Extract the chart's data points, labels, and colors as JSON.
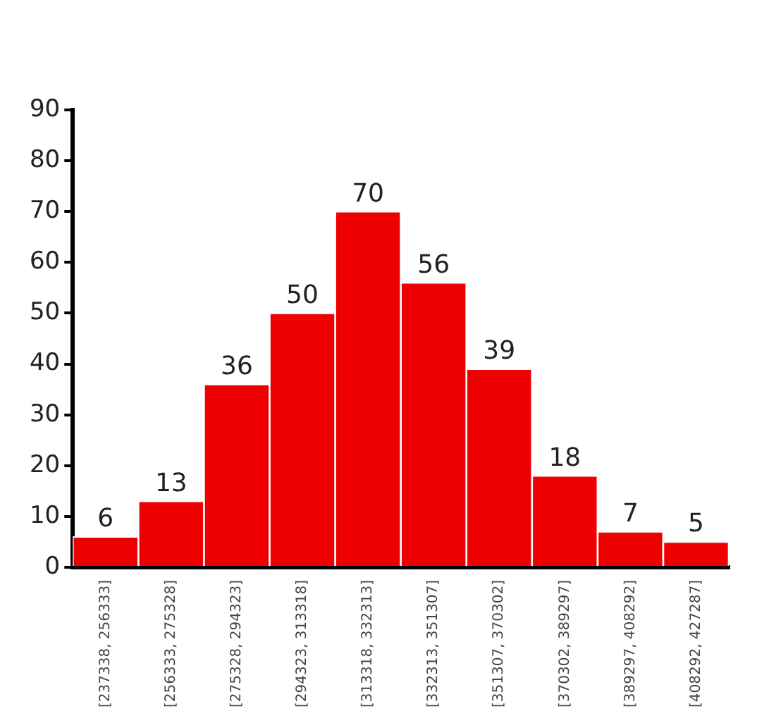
{
  "chart_data": {
    "type": "bar",
    "categories": [
      "[237338, 256333]",
      "[256333, 275328]",
      "[275328, 294323]",
      "[294323, 313318]",
      "[313318, 332313]",
      "[332313, 351307]",
      "[351307, 370302]",
      "[370302, 389297]",
      "[389297, 408292]",
      "[408292, 427287]"
    ],
    "values": [
      6,
      13,
      36,
      50,
      70,
      56,
      39,
      18,
      7,
      5
    ],
    "color": "#ee0000",
    "ylim": [
      0,
      90
    ],
    "yticks": [
      0,
      10,
      20,
      30,
      40,
      50,
      60,
      70,
      80,
      90
    ],
    "grid": false,
    "legend": false,
    "data_labels": true
  }
}
